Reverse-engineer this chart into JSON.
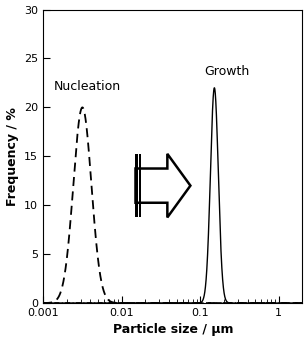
{
  "xlabel": "Particle size / μm",
  "ylabel": "Frequency / %",
  "ylim": [
    0,
    30
  ],
  "xlim": [
    0.001,
    2.0
  ],
  "nucleation_mean_log": -2.5,
  "nucleation_std_log": 0.115,
  "nucleation_peak": 20.0,
  "growth_mean_log": -0.82,
  "growth_std_log": 0.05,
  "growth_peak": 22.0,
  "label_nucleation": "Nucleation",
  "label_growth": "Growth",
  "background_color": "#ffffff",
  "line_color": "#000000",
  "axis_fontsize": 9,
  "tick_fontsize": 8,
  "label_fontsize": 9
}
